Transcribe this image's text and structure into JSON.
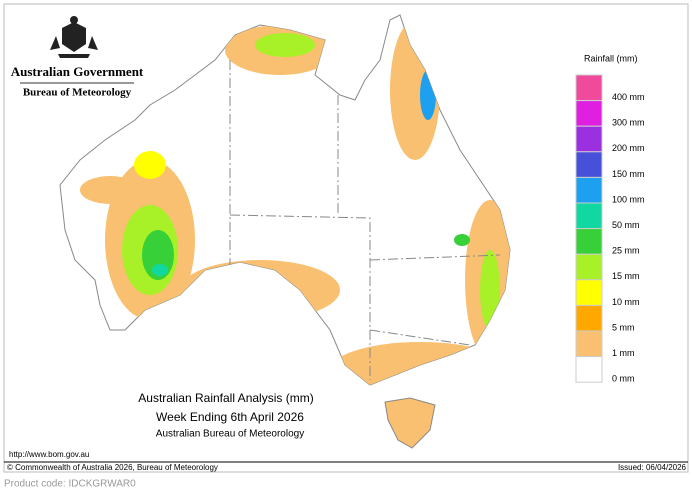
{
  "header": {
    "title": "Australian Government",
    "subtitle": "Bureau of Meteorology"
  },
  "legend": {
    "title": "Rainfall (mm)",
    "items": [
      {
        "label": "400 mm",
        "color": "#f04a9c"
      },
      {
        "label": "300 mm",
        "color": "#e020e0"
      },
      {
        "label": "200 mm",
        "color": "#9a30e0"
      },
      {
        "label": "150 mm",
        "color": "#4650d8"
      },
      {
        "label": "100 mm",
        "color": "#1ea0f0"
      },
      {
        "label": "50 mm",
        "color": "#10d8a0"
      },
      {
        "label": "25 mm",
        "color": "#38d038"
      },
      {
        "label": "15 mm",
        "color": "#a8f028"
      },
      {
        "label": "10 mm",
        "color": "#ffff00"
      },
      {
        "label": "5 mm",
        "color": "#ffa800"
      },
      {
        "label": "1 mm",
        "color": "#f8c070"
      },
      {
        "label": "0 mm",
        "color": "#ffffff"
      }
    ]
  },
  "caption": {
    "line1": "Australian Rainfall Analysis (mm)",
    "line2": "Week Ending 6th April 2026",
    "line3": "Australian Bureau of Meteorology"
  },
  "footer": {
    "url": "http://www.bom.gov.au",
    "copyright": "© Commonwealth of Australia 2026, Bureau of Meteorology",
    "issued": "Issued: 06/04/2026",
    "product": "Product code: IDCKGRWAR0"
  }
}
